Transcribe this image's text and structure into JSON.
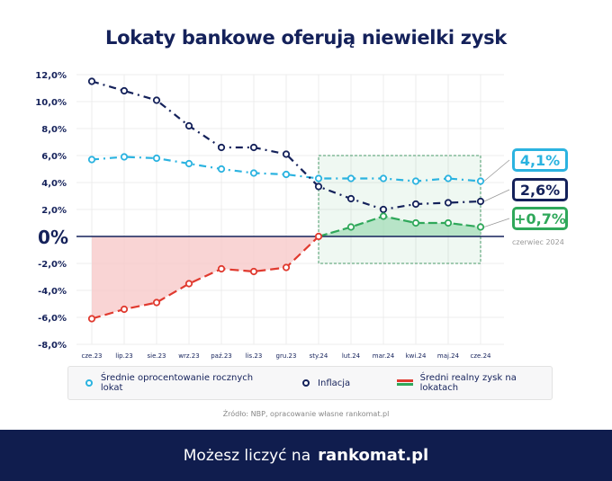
{
  "title": "Lokaty bankowe oferują niewielki zysk",
  "chart_data": {
    "type": "line",
    "title": "Lokaty bankowe oferują niewielki zysk",
    "categories": [
      "cze.23",
      "lip.23",
      "sie.23",
      "wrz.23",
      "paź.23",
      "lis.23",
      "gru.23",
      "sty.24",
      "lut.24",
      "mar.24",
      "kwi.24",
      "maj.24",
      "cze.24"
    ],
    "y_ticks": [
      "12,0%",
      "10,0%",
      "8,0%",
      "6,0%",
      "4,0%",
      "2,0%",
      "0%",
      "-2,0%",
      "-4,0%",
      "-6,0%",
      "-8,0%"
    ],
    "ylim": [
      -8,
      12
    ],
    "grid": true,
    "legend_position": "bottom",
    "series": [
      {
        "name": "Średnie oprocentowanie rocznych lokat",
        "color": "#2bb3e0",
        "values": [
          5.7,
          5.9,
          5.8,
          5.4,
          5.0,
          4.7,
          4.6,
          4.3,
          4.3,
          4.3,
          4.1,
          4.3,
          4.1
        ]
      },
      {
        "name": "Inflacja",
        "color": "#14215a",
        "values": [
          11.5,
          10.8,
          10.1,
          8.2,
          6.6,
          6.6,
          6.1,
          3.7,
          2.8,
          2.0,
          2.4,
          2.5,
          2.6
        ]
      },
      {
        "name": "Średni realny zysk na lokatach",
        "color_negative": "#e03a2f",
        "color_positive": "#2fa85a",
        "values": [
          -6.1,
          -5.4,
          -4.9,
          -3.5,
          -2.4,
          -2.6,
          -2.3,
          0.0,
          0.7,
          1.5,
          1.0,
          1.0,
          0.7
        ]
      }
    ],
    "annotations": {
      "deposit": "4,1%",
      "inflation": "2,6%",
      "real": "+0,7%",
      "period": "czerwiec 2024"
    },
    "highlight_range": {
      "from": "sty.24",
      "to": "cze.24",
      "y": [
        -2,
        6
      ]
    }
  },
  "source": "Źródło: NBP, opracowanie własne rankomat.pl",
  "footer": {
    "tagline": "Możesz liczyć na",
    "brand": "rankomat.pl"
  }
}
